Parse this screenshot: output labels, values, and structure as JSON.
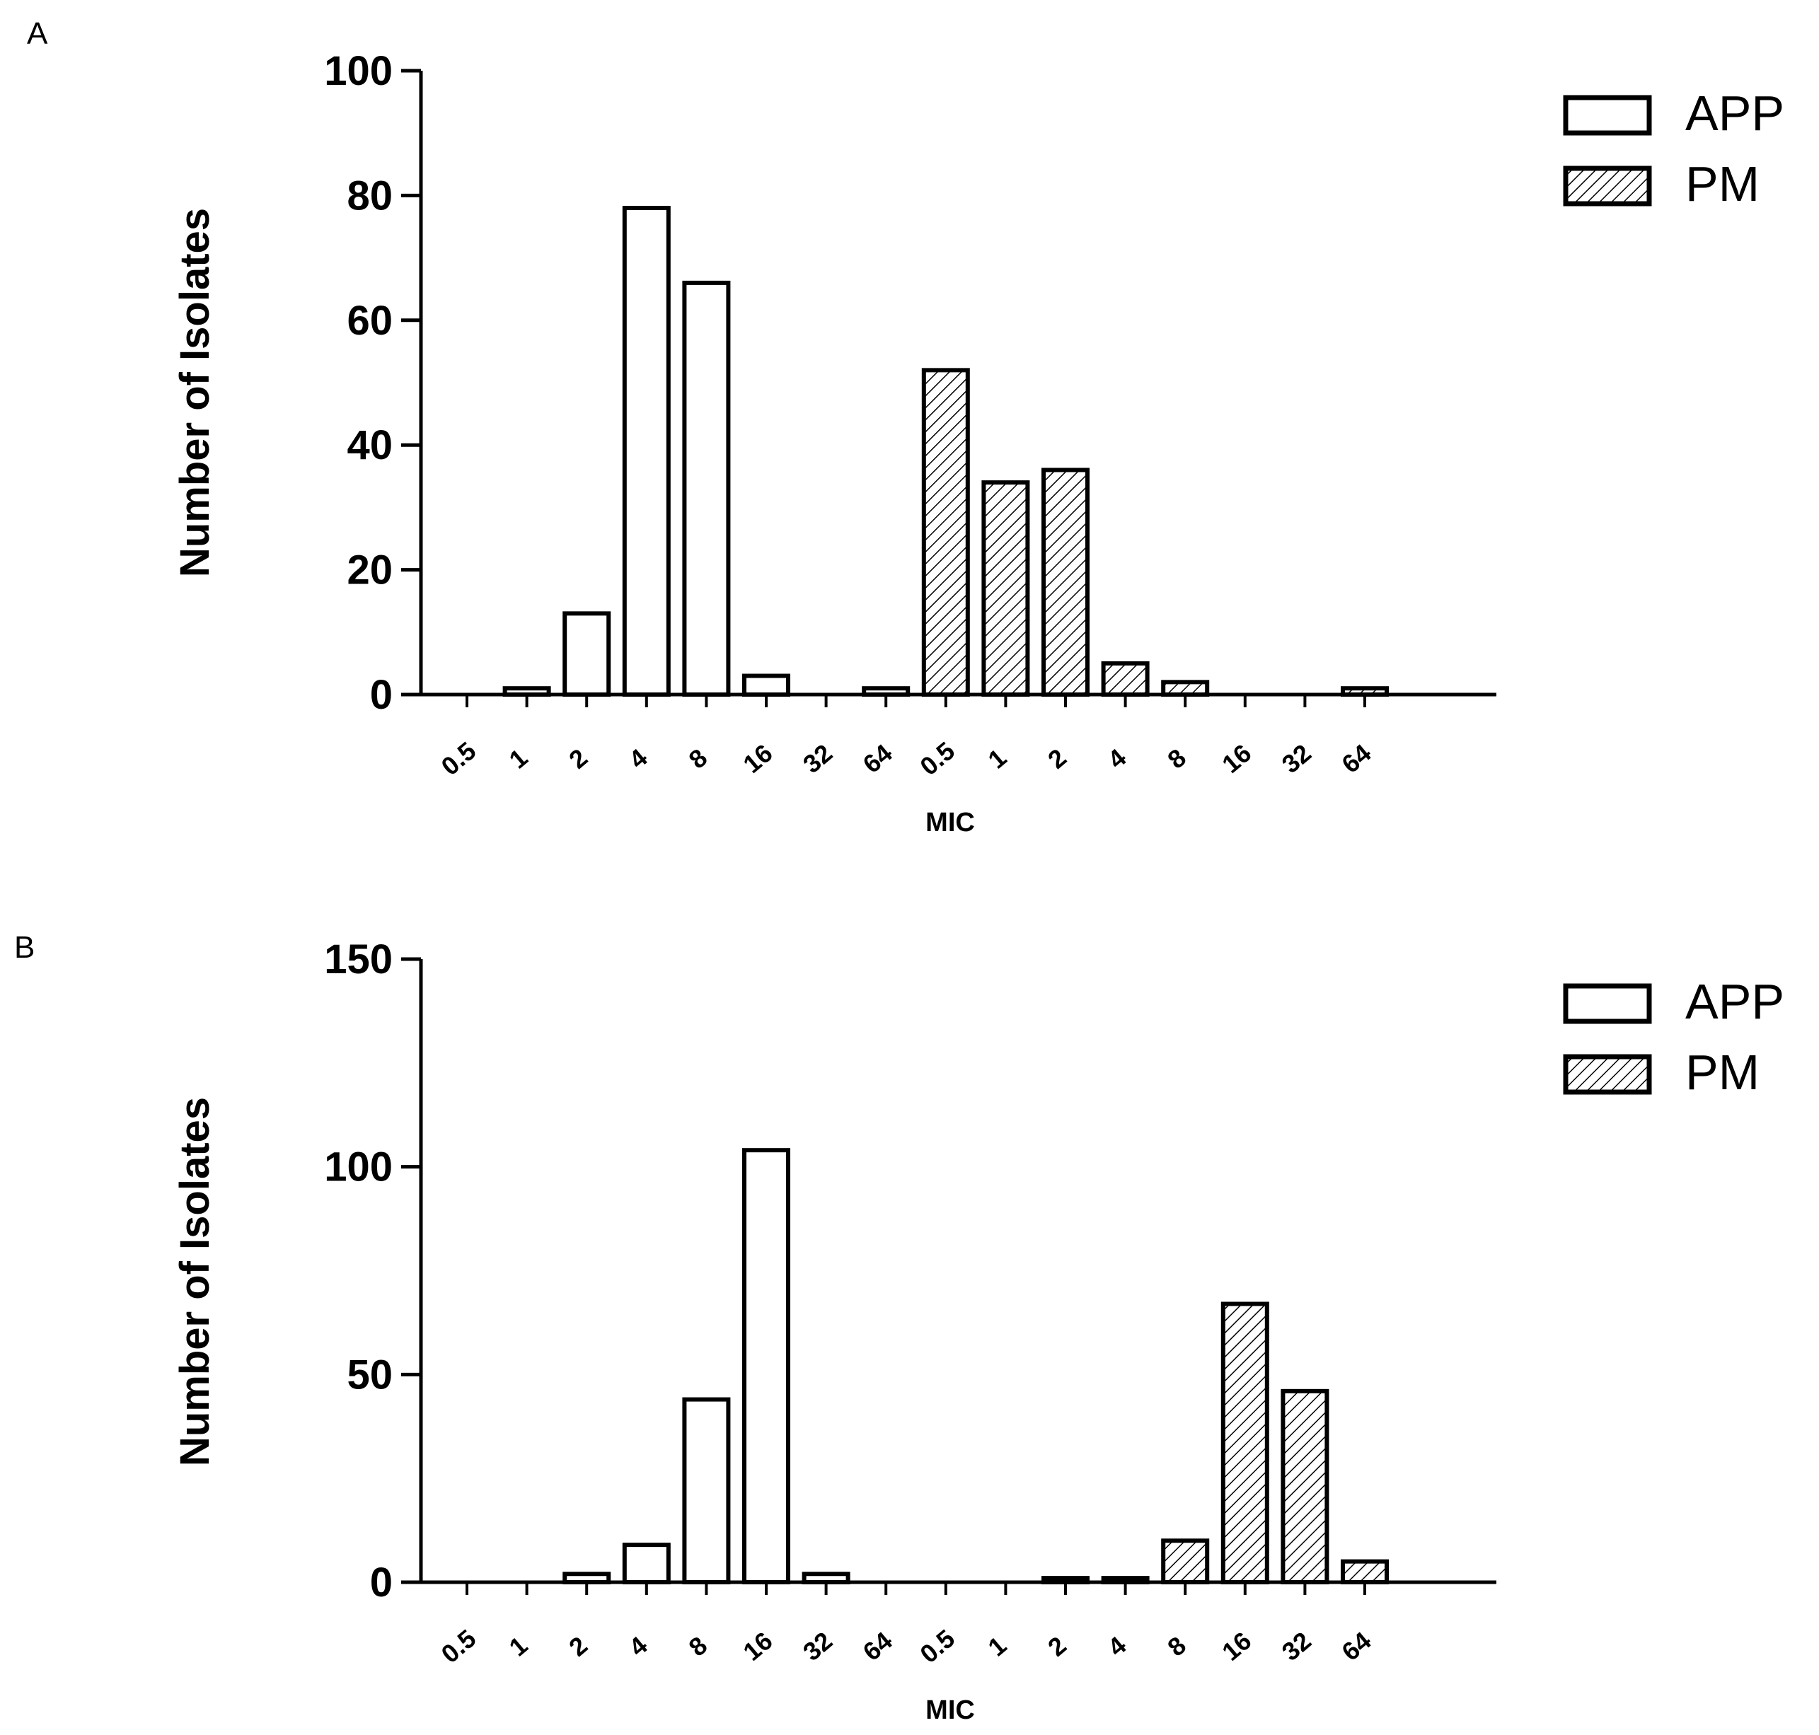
{
  "chart_data": [
    {
      "panel": "A",
      "type": "bar",
      "ylabel": "Number of Isolates",
      "xlabel": "MIC",
      "ylim": [
        0,
        100
      ],
      "yticks": [
        0,
        20,
        40,
        60,
        80,
        100
      ],
      "categories": [
        "0.5",
        "1",
        "2",
        "4",
        "8",
        "16",
        "32",
        "64",
        "0.5",
        "1",
        "2",
        "4",
        "8",
        "16",
        "32",
        "64"
      ],
      "series": [
        {
          "name": "APP",
          "pattern": "open",
          "values": [
            0,
            1,
            13,
            78,
            66,
            3,
            0,
            1,
            null,
            null,
            null,
            null,
            null,
            null,
            null,
            null
          ]
        },
        {
          "name": "PM",
          "pattern": "hatched",
          "values": [
            null,
            null,
            null,
            null,
            null,
            null,
            null,
            null,
            52,
            34,
            36,
            5,
            2,
            0,
            0,
            1
          ]
        }
      ],
      "legend": [
        "APP",
        "PM"
      ],
      "legend_position": "top-right"
    },
    {
      "panel": "B",
      "type": "bar",
      "ylabel": "Number of Isolates",
      "xlabel": "MIC",
      "ylim": [
        0,
        150
      ],
      "yticks": [
        0,
        50,
        100,
        150
      ],
      "categories": [
        "0.5",
        "1",
        "2",
        "4",
        "8",
        "16",
        "32",
        "64",
        "0.5",
        "1",
        "2",
        "4",
        "8",
        "16",
        "32",
        "64"
      ],
      "series": [
        {
          "name": "APP",
          "pattern": "open",
          "values": [
            0,
            0,
            2,
            9,
            44,
            104,
            2,
            0,
            null,
            null,
            null,
            null,
            null,
            null,
            null,
            null
          ]
        },
        {
          "name": "PM",
          "pattern": "hatched",
          "values": [
            null,
            null,
            null,
            null,
            null,
            null,
            null,
            null,
            0,
            0,
            1,
            1,
            10,
            67,
            46,
            5
          ]
        }
      ],
      "legend": [
        "APP",
        "PM"
      ],
      "legend_position": "top-right"
    }
  ],
  "colors": {
    "axis": "#000000",
    "bar_open": "#ffffff",
    "bar_hatch_line": "#000000"
  }
}
